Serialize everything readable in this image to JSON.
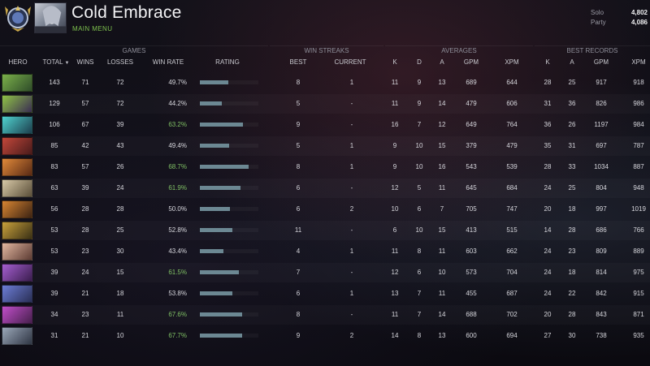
{
  "player": {
    "name": "Cold Embrace",
    "subtitle": "MAIN MENU",
    "mmr": [
      {
        "label": "Solo",
        "value": "4,802"
      },
      {
        "label": "Party",
        "value": "4,086"
      }
    ]
  },
  "groups": [
    "GAMES",
    "WIN STREAKS",
    "AVERAGES",
    "BEST RECORDS"
  ],
  "columns": [
    "HERO",
    "TOTAL",
    "WINS",
    "LOSSES",
    "WIN RATE",
    "RATING",
    "BEST",
    "CURRENT",
    "K",
    "D",
    "A",
    "GPM",
    "XPM",
    "K",
    "A",
    "GPM",
    "XPM"
  ],
  "colors": {
    "good_winrate": "#7fc064",
    "rating_bar": "#6c8893",
    "accent_green": "#7ec04d"
  },
  "rows": [
    {
      "total": "143",
      "wins": "71",
      "losses": "72",
      "winrate": "49.7%",
      "rating": 0.49,
      "best": "8",
      "current": "1",
      "k": "11",
      "d": "9",
      "a": "13",
      "gpm": "689",
      "xpm": "644",
      "bk": "28",
      "ba": "25",
      "bgpm": "917",
      "bxpm": "918",
      "portrait": [
        "#7bb04a",
        "#2f4d2a"
      ]
    },
    {
      "total": "129",
      "wins": "57",
      "losses": "72",
      "winrate": "44.2%",
      "rating": 0.38,
      "best": "5",
      "current": "-",
      "k": "11",
      "d": "9",
      "a": "14",
      "gpm": "479",
      "xpm": "606",
      "bk": "31",
      "ba": "36",
      "bgpm": "826",
      "bxpm": "986",
      "portrait": [
        "#8fc246",
        "#3a2d52"
      ]
    },
    {
      "total": "106",
      "wins": "67",
      "losses": "39",
      "winrate": "63.2%",
      "rating": 0.74,
      "best": "9",
      "current": "-",
      "k": "16",
      "d": "7",
      "a": "12",
      "gpm": "649",
      "xpm": "764",
      "bk": "36",
      "ba": "26",
      "bgpm": "1197",
      "bxpm": "984",
      "portrait": [
        "#4fd2cf",
        "#1d3f4e"
      ]
    },
    {
      "total": "85",
      "wins": "42",
      "losses": "43",
      "winrate": "49.4%",
      "rating": 0.5,
      "best": "5",
      "current": "1",
      "k": "9",
      "d": "10",
      "a": "15",
      "gpm": "379",
      "xpm": "479",
      "bk": "35",
      "ba": "31",
      "bgpm": "697",
      "bxpm": "787",
      "portrait": [
        "#c2473a",
        "#4a1b1b"
      ]
    },
    {
      "total": "83",
      "wins": "57",
      "losses": "26",
      "winrate": "68.7%",
      "rating": 0.83,
      "best": "8",
      "current": "1",
      "k": "9",
      "d": "10",
      "a": "16",
      "gpm": "543",
      "xpm": "539",
      "bk": "28",
      "ba": "33",
      "bgpm": "1034",
      "bxpm": "887",
      "portrait": [
        "#e0893a",
        "#5a2a14"
      ]
    },
    {
      "total": "63",
      "wins": "39",
      "losses": "24",
      "winrate": "61.9%",
      "rating": 0.7,
      "best": "6",
      "current": "-",
      "k": "12",
      "d": "5",
      "a": "11",
      "gpm": "645",
      "xpm": "684",
      "bk": "24",
      "ba": "25",
      "bgpm": "804",
      "bxpm": "948",
      "portrait": [
        "#d8c9a8",
        "#5b4f39"
      ]
    },
    {
      "total": "56",
      "wins": "28",
      "losses": "28",
      "winrate": "50.0%",
      "rating": 0.52,
      "best": "6",
      "current": "2",
      "k": "10",
      "d": "6",
      "a": "7",
      "gpm": "705",
      "xpm": "747",
      "bk": "20",
      "ba": "18",
      "bgpm": "997",
      "bxpm": "1019",
      "portrait": [
        "#d78532",
        "#3e2413"
      ]
    },
    {
      "total": "53",
      "wins": "28",
      "losses": "25",
      "winrate": "52.8%",
      "rating": 0.55,
      "best": "11",
      "current": "-",
      "k": "6",
      "d": "10",
      "a": "15",
      "gpm": "413",
      "xpm": "515",
      "bk": "14",
      "ba": "28",
      "bgpm": "686",
      "bxpm": "766",
      "portrait": [
        "#c8a13c",
        "#3b3115"
      ]
    },
    {
      "total": "53",
      "wins": "23",
      "losses": "30",
      "winrate": "43.4%",
      "rating": 0.4,
      "best": "4",
      "current": "1",
      "k": "11",
      "d": "8",
      "a": "11",
      "gpm": "603",
      "xpm": "662",
      "bk": "24",
      "ba": "23",
      "bgpm": "809",
      "bxpm": "889",
      "portrait": [
        "#e2b7a0",
        "#5c3b33"
      ]
    },
    {
      "total": "39",
      "wins": "24",
      "losses": "15",
      "winrate": "61.5%",
      "rating": 0.66,
      "best": "7",
      "current": "-",
      "k": "12",
      "d": "6",
      "a": "10",
      "gpm": "573",
      "xpm": "704",
      "bk": "24",
      "ba": "18",
      "bgpm": "814",
      "bxpm": "975",
      "portrait": [
        "#a55fd0",
        "#3b1d4f"
      ]
    },
    {
      "total": "39",
      "wins": "21",
      "losses": "18",
      "winrate": "53.8%",
      "rating": 0.56,
      "best": "6",
      "current": "1",
      "k": "13",
      "d": "7",
      "a": "11",
      "gpm": "455",
      "xpm": "687",
      "bk": "24",
      "ba": "22",
      "bgpm": "842",
      "bxpm": "915",
      "portrait": [
        "#6c7dd6",
        "#2a2f56"
      ]
    },
    {
      "total": "34",
      "wins": "23",
      "losses": "11",
      "winrate": "67.6%",
      "rating": 0.72,
      "best": "8",
      "current": "-",
      "k": "11",
      "d": "7",
      "a": "14",
      "gpm": "688",
      "xpm": "702",
      "bk": "20",
      "ba": "28",
      "bgpm": "843",
      "bxpm": "871",
      "portrait": [
        "#c04ec9",
        "#48204e"
      ]
    },
    {
      "total": "31",
      "wins": "21",
      "losses": "10",
      "winrate": "67.7%",
      "rating": 0.72,
      "best": "9",
      "current": "2",
      "k": "14",
      "d": "8",
      "a": "13",
      "gpm": "600",
      "xpm": "694",
      "bk": "27",
      "ba": "30",
      "bgpm": "738",
      "bxpm": "935",
      "portrait": [
        "#9aa7b8",
        "#2f3644"
      ]
    }
  ]
}
